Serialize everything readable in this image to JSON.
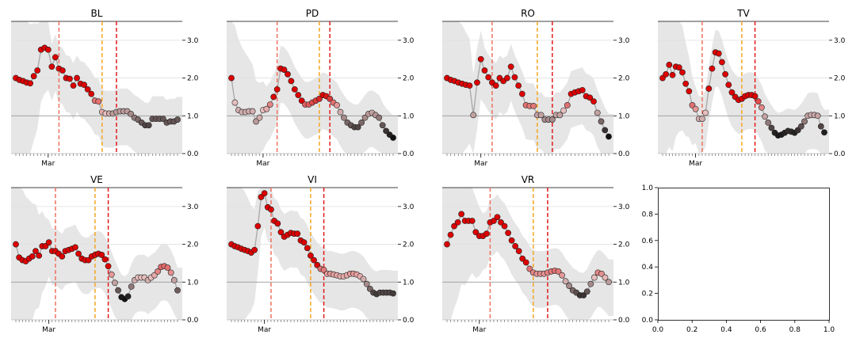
{
  "chart_data": [
    {
      "type": "line",
      "title": "BL",
      "xtick_label": "Mar",
      "ylim": [
        0,
        3.5
      ],
      "yticks": [
        "0.0",
        "1.0",
        "2.0",
        "3.0"
      ],
      "vlines": {
        "salmon": 12,
        "orange": 24,
        "red": 28
      },
      "y": [
        2.0,
        1.95,
        1.92,
        1.88,
        1.86,
        2.05,
        2.2,
        2.75,
        2.8,
        2.75,
        2.3,
        2.55,
        2.25,
        2.2,
        2.0,
        1.98,
        1.8,
        2.0,
        1.85,
        1.82,
        1.7,
        1.58,
        1.4,
        1.38,
        1.1,
        1.06,
        1.06,
        1.06,
        1.1,
        1.12,
        1.12,
        1.12,
        1.05,
        0.95,
        0.9,
        0.82,
        0.75,
        0.75,
        0.92,
        0.92,
        0.92,
        0.92,
        0.82,
        0.85,
        0.85,
        0.9
      ],
      "r": [
        1.0,
        1.0,
        1.0,
        1.0,
        1.0,
        1.0,
        1.0,
        1.0,
        1.0,
        1.0,
        1.0,
        1.0,
        1.0,
        1.0,
        1.0,
        1.0,
        1.0,
        1.0,
        1.0,
        1.0,
        1.0,
        1.0,
        0.7,
        0.7,
        0.55,
        0.5,
        0.45,
        0.4,
        0.4,
        0.4,
        0.4,
        0.4,
        0.35,
        0.3,
        0.25,
        0.2,
        0.15,
        0.15,
        0.2,
        0.2,
        0.2,
        0.2,
        0.2,
        0.2,
        0.2,
        0.2
      ]
    },
    {
      "type": "line",
      "title": "PD",
      "xtick_label": "Mar",
      "ylim": [
        0,
        3.5
      ],
      "yticks": [
        "0.0",
        "1.0",
        "2.0",
        "3.0"
      ],
      "vlines": {
        "salmon": 13,
        "orange": 25,
        "red": 28
      },
      "y": [
        2.0,
        1.35,
        1.15,
        1.1,
        1.1,
        1.12,
        1.12,
        0.85,
        0.95,
        1.15,
        1.18,
        1.3,
        1.5,
        1.7,
        2.25,
        2.22,
        2.1,
        1.92,
        1.7,
        1.55,
        1.4,
        1.3,
        1.3,
        1.35,
        1.4,
        1.45,
        1.55,
        1.52,
        1.45,
        1.35,
        1.28,
        1.1,
        0.95,
        0.82,
        0.75,
        0.7,
        0.7,
        0.82,
        0.95,
        1.05,
        1.08,
        1.02,
        0.95,
        0.75,
        0.6,
        0.5,
        0.42
      ],
      "r": [
        1.0,
        0.5,
        0.45,
        0.45,
        0.45,
        0.45,
        0.45,
        0.4,
        0.45,
        0.5,
        0.55,
        0.65,
        1.0,
        1.0,
        1.0,
        1.0,
        1.0,
        1.0,
        1.0,
        1.0,
        1.0,
        0.75,
        0.75,
        0.8,
        0.85,
        0.9,
        1.0,
        0.95,
        0.85,
        0.7,
        0.6,
        0.45,
        0.35,
        0.25,
        0.2,
        0.15,
        0.15,
        0.25,
        0.35,
        0.4,
        0.42,
        0.38,
        0.3,
        0.2,
        0.1,
        0.05,
        0.0
      ]
    },
    {
      "type": "line",
      "title": "RO",
      "xtick_label": "Mar",
      "ylim": [
        0,
        3.5
      ],
      "yticks": [
        "0.0",
        "1.0",
        "2.0",
        "3.0"
      ],
      "vlines": {
        "salmon": 12,
        "orange": 24,
        "red": 28
      },
      "y": [
        2.0,
        1.95,
        1.92,
        1.88,
        1.85,
        1.82,
        1.8,
        1.02,
        1.88,
        2.5,
        2.2,
        2.02,
        1.88,
        1.8,
        2.0,
        1.92,
        2.0,
        2.3,
        2.02,
        1.8,
        1.58,
        1.28,
        1.26,
        1.26,
        1.02,
        1.02,
        0.9,
        0.9,
        0.9,
        1.02,
        1.02,
        1.14,
        1.28,
        1.58,
        1.62,
        1.65,
        1.68,
        1.52,
        1.48,
        1.38,
        1.08,
        0.85,
        0.62,
        0.45
      ],
      "r": [
        1.0,
        1.0,
        1.0,
        1.0,
        1.0,
        1.0,
        1.0,
        0.42,
        1.0,
        1.0,
        1.0,
        1.0,
        1.0,
        1.0,
        1.0,
        1.0,
        1.0,
        1.0,
        1.0,
        1.0,
        1.0,
        0.7,
        0.68,
        0.68,
        0.42,
        0.42,
        0.35,
        0.35,
        0.35,
        0.42,
        0.42,
        0.5,
        0.7,
        1.0,
        1.0,
        1.0,
        1.0,
        1.0,
        1.0,
        1.0,
        0.42,
        0.25,
        0.1,
        0.0
      ]
    },
    {
      "type": "line",
      "title": "TV",
      "xtick_label": "Mar",
      "ylim": [
        0,
        3.5
      ],
      "yticks": [
        "0.0",
        "1.0",
        "2.0",
        "3.0"
      ],
      "vlines": {
        "salmon": 12,
        "orange": 24,
        "red": 28
      },
      "y": [
        2.0,
        2.1,
        2.35,
        2.08,
        2.3,
        2.28,
        2.15,
        1.85,
        1.65,
        1.28,
        1.18,
        0.92,
        0.92,
        1.08,
        1.72,
        2.25,
        2.68,
        2.65,
        2.42,
        2.1,
        1.82,
        1.62,
        1.5,
        1.42,
        1.45,
        1.52,
        1.55,
        1.55,
        1.52,
        1.38,
        1.22,
        0.98,
        0.82,
        0.68,
        0.55,
        0.48,
        0.5,
        0.55,
        0.6,
        0.58,
        0.55,
        0.62,
        0.72,
        0.85,
        1.0,
        1.02,
        1.02,
        1.0,
        0.72,
        0.56
      ],
      "r": [
        1.0,
        1.0,
        1.0,
        1.0,
        1.0,
        1.0,
        1.0,
        1.0,
        1.0,
        0.7,
        0.6,
        0.45,
        0.45,
        0.5,
        1.0,
        1.0,
        1.0,
        1.0,
        1.0,
        1.0,
        1.0,
        1.0,
        1.0,
        1.0,
        1.0,
        1.0,
        1.0,
        1.0,
        1.0,
        0.8,
        0.65,
        0.42,
        0.3,
        0.15,
        0.05,
        0.02,
        0.03,
        0.05,
        0.08,
        0.07,
        0.05,
        0.1,
        0.18,
        0.3,
        0.42,
        0.44,
        0.44,
        0.42,
        0.15,
        0.04
      ]
    },
    {
      "type": "line",
      "title": "VE",
      "xtick_label": "Mar",
      "ylim": [
        0,
        3.5
      ],
      "yticks": [
        "0.0",
        "1.0",
        "2.0",
        "3.0"
      ],
      "vlines": {
        "salmon": 12,
        "orange": 24,
        "red": 28
      },
      "y": [
        2.0,
        1.65,
        1.58,
        1.55,
        1.62,
        1.68,
        1.82,
        1.7,
        1.95,
        1.95,
        2.05,
        1.82,
        1.82,
        1.75,
        1.68,
        1.82,
        1.85,
        1.88,
        1.92,
        1.75,
        1.62,
        1.58,
        1.58,
        1.68,
        1.72,
        1.75,
        1.72,
        1.6,
        1.42,
        1.2,
        0.98,
        0.78,
        0.6,
        0.55,
        0.62,
        0.88,
        1.05,
        1.12,
        1.12,
        1.12,
        1.05,
        1.12,
        1.18,
        1.28,
        1.4,
        1.42,
        1.38,
        1.25,
        1.05,
        0.78
      ],
      "r": [
        1.0,
        1.0,
        1.0,
        1.0,
        1.0,
        1.0,
        1.0,
        1.0,
        1.0,
        1.0,
        1.0,
        1.0,
        1.0,
        1.0,
        1.0,
        1.0,
        1.0,
        1.0,
        1.0,
        1.0,
        1.0,
        1.0,
        1.0,
        1.0,
        1.0,
        1.0,
        1.0,
        1.0,
        1.0,
        0.6,
        0.42,
        0.2,
        0.02,
        0.0,
        0.05,
        0.3,
        0.45,
        0.5,
        0.5,
        0.5,
        0.45,
        0.5,
        0.55,
        0.65,
        0.72,
        0.72,
        0.7,
        0.62,
        0.42,
        0.22
      ]
    },
    {
      "type": "line",
      "title": "VI",
      "xtick_label": "Mar",
      "ylim": [
        0,
        3.5
      ],
      "yticks": [
        "0.0",
        "1.0",
        "2.0",
        "3.0"
      ],
      "vlines": {
        "salmon": 12,
        "orange": 24,
        "red": 28
      },
      "y": [
        2.0,
        1.95,
        1.92,
        1.88,
        1.85,
        1.82,
        1.78,
        1.85,
        2.48,
        3.25,
        3.35,
        2.98,
        2.92,
        2.62,
        2.55,
        2.32,
        2.2,
        2.25,
        2.3,
        2.28,
        2.28,
        2.1,
        2.05,
        1.9,
        1.7,
        1.58,
        1.45,
        1.35,
        1.32,
        1.22,
        1.22,
        1.2,
        1.18,
        1.15,
        1.15,
        1.18,
        1.22,
        1.22,
        1.2,
        1.15,
        1.08,
        0.95,
        0.82,
        0.72,
        0.68,
        0.72,
        0.72,
        0.72,
        0.72,
        0.7
      ],
      "r": [
        1.0,
        1.0,
        1.0,
        1.0,
        1.0,
        1.0,
        1.0,
        1.0,
        1.0,
        1.0,
        1.0,
        1.0,
        1.0,
        1.0,
        1.0,
        1.0,
        1.0,
        1.0,
        1.0,
        1.0,
        1.0,
        1.0,
        1.0,
        1.0,
        1.0,
        1.0,
        1.0,
        0.7,
        0.68,
        0.6,
        0.6,
        0.58,
        0.56,
        0.55,
        0.55,
        0.56,
        0.6,
        0.6,
        0.58,
        0.55,
        0.45,
        0.35,
        0.25,
        0.15,
        0.12,
        0.15,
        0.15,
        0.15,
        0.15,
        0.12
      ]
    },
    {
      "type": "line",
      "title": "VR",
      "xtick_label": "Mar",
      "ylim": [
        0,
        3.5
      ],
      "yticks": [
        "0.0",
        "1.0",
        "2.0",
        "3.0"
      ],
      "vlines": {
        "salmon": 12,
        "orange": 24,
        "red": 28
      },
      "y": [
        2.0,
        2.25,
        2.48,
        2.58,
        2.8,
        2.62,
        2.62,
        2.62,
        2.32,
        2.22,
        2.22,
        2.28,
        2.58,
        2.62,
        2.72,
        2.58,
        2.48,
        2.3,
        2.1,
        1.95,
        1.82,
        1.62,
        1.52,
        1.35,
        1.25,
        1.22,
        1.22,
        1.22,
        1.25,
        1.28,
        1.3,
        1.28,
        1.18,
        1.02,
        0.9,
        0.78,
        0.72,
        0.65,
        0.65,
        0.75,
        0.95,
        1.12,
        1.25,
        1.22,
        1.12,
        1.0
      ],
      "r": [
        1.0,
        1.0,
        1.0,
        1.0,
        1.0,
        1.0,
        1.0,
        1.0,
        1.0,
        1.0,
        1.0,
        1.0,
        1.0,
        1.0,
        1.0,
        1.0,
        1.0,
        1.0,
        1.0,
        1.0,
        1.0,
        1.0,
        1.0,
        0.7,
        0.65,
        0.62,
        0.62,
        0.62,
        0.65,
        0.68,
        0.7,
        0.68,
        0.6,
        0.45,
        0.35,
        0.25,
        0.18,
        0.1,
        0.1,
        0.2,
        0.35,
        0.5,
        0.65,
        0.62,
        0.52,
        0.4
      ]
    },
    {
      "type": "line",
      "title": "",
      "empty": true,
      "xlim": [
        0.0,
        1.0
      ],
      "ylim": [
        0.0,
        1.0
      ],
      "xticks": [
        "0.0",
        "0.2",
        "0.4",
        "0.6",
        "0.8",
        "1.0"
      ],
      "yticks": [
        "0.0",
        "0.2",
        "0.4",
        "0.6",
        "0.8",
        "1.0"
      ]
    }
  ],
  "colors": {
    "band": "#e6e6e6",
    "line": "#aaaaaa",
    "hline": "#999999",
    "vline_salmon": "#f07060",
    "vline_orange": "#f5a623",
    "vline_red": "#e31a1c",
    "marker_high": "#dd0000",
    "marker_low": "#111111"
  }
}
